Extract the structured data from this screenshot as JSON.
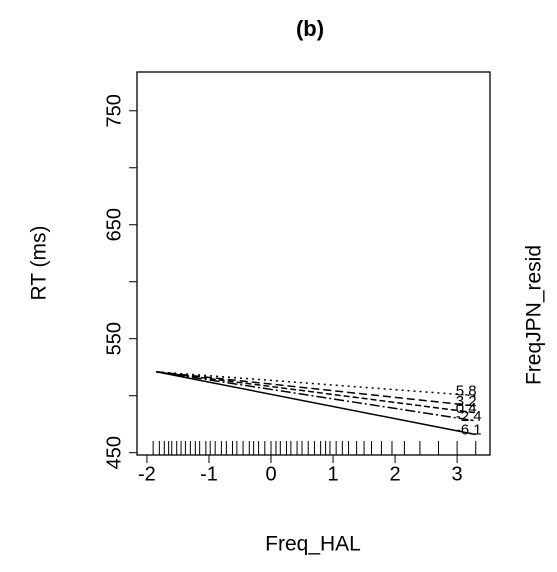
{
  "chart_data": {
    "type": "line",
    "title": "(b)",
    "x_label": "Freq_HAL",
    "y_label": "RT (ms)",
    "legend_title": "FreqJPN_resid",
    "xlim": [
      -2.16,
      3.53
    ],
    "ylim": [
      448,
      784
    ],
    "xticks": [
      -2,
      -1,
      0,
      1,
      2,
      3
    ],
    "yticks": [
      450,
      500,
      550,
      600,
      650,
      700,
      750
    ],
    "ytick_labels": [
      {
        "value": 450,
        "label": "450"
      },
      {
        "value": 550,
        "label": "550"
      },
      {
        "value": 650,
        "label": "650"
      },
      {
        "value": 750,
        "label": "750"
      }
    ],
    "x": [
      -1.85,
      3.3
    ],
    "series": [
      {
        "name": "5.8",
        "color": "#000",
        "dash": "2,4",
        "values": [
          521,
          500
        ]
      },
      {
        "name": "3.2",
        "color": "#000",
        "dash": "8,4",
        "values": [
          521,
          491
        ]
      },
      {
        "name": "0.4",
        "color": "#000",
        "dash": "6,3",
        "values": [
          521,
          485
        ]
      },
      {
        "name": "-2.4",
        "color": "#000",
        "dash": "10,3,2,3",
        "values": [
          521,
          478
        ]
      },
      {
        "name": "-6.1",
        "color": "#000",
        "dash": "",
        "values": [
          521,
          466
        ]
      }
    ],
    "rug": [
      -1.9,
      -1.8,
      -1.72,
      -1.65,
      -1.6,
      -1.52,
      -1.45,
      -1.38,
      -1.3,
      -1.22,
      -1.15,
      -1.05,
      -0.98,
      -0.9,
      -0.8,
      -0.72,
      -0.62,
      -0.55,
      -0.45,
      -0.35,
      -0.28,
      -0.2,
      -0.1,
      0.0,
      0.08,
      0.15,
      0.25,
      0.32,
      0.42,
      0.5,
      0.6,
      0.7,
      0.8,
      0.88,
      0.95,
      1.05,
      1.15,
      1.25,
      1.38,
      1.5,
      1.62,
      1.78,
      1.95,
      2.15,
      2.4,
      2.7,
      3.0,
      3.3
    ]
  }
}
